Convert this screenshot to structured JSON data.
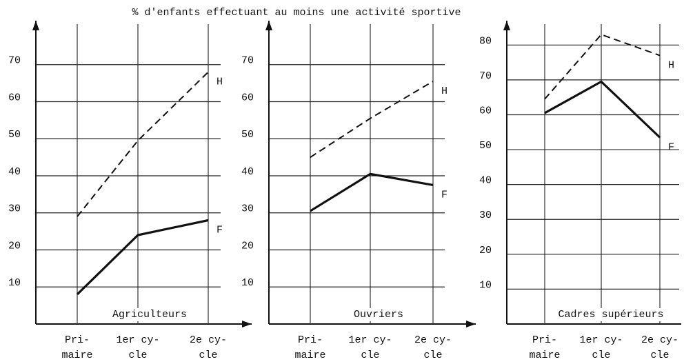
{
  "title": "% d'enfants effectuant au moins une activité sportive",
  "chart_data": [
    {
      "type": "line",
      "label": "Agriculteurs",
      "categories": [
        [
          "Pri-",
          "maire"
        ],
        [
          "1er cy-",
          "cle"
        ],
        [
          "2e cy-",
          "cle"
        ]
      ],
      "series": [
        {
          "name": "H",
          "color": "#111111",
          "style": "dashed",
          "values": [
            29,
            49.5,
            68
          ]
        },
        {
          "name": "F",
          "color": "#111111",
          "style": "solid",
          "values": [
            8,
            24,
            28
          ]
        }
      ],
      "ylim": [
        0,
        80
      ],
      "yticks": [
        10,
        20,
        30,
        40,
        50,
        60,
        70
      ],
      "grid": true
    },
    {
      "type": "line",
      "label": "Ouvriers",
      "categories": [
        [
          "Pri-",
          "maire"
        ],
        [
          "1er cy-",
          "cle"
        ],
        [
          "2e cy-",
          "cle"
        ]
      ],
      "series": [
        {
          "name": "H",
          "color": "#111111",
          "style": "dashed",
          "values": [
            45,
            55.5,
            65.5
          ]
        },
        {
          "name": "F",
          "color": "#111111",
          "style": "solid",
          "values": [
            30.5,
            40.5,
            37.5
          ]
        }
      ],
      "ylim": [
        0,
        80
      ],
      "yticks": [
        10,
        20,
        30,
        40,
        50,
        60,
        70
      ],
      "grid": true
    },
    {
      "type": "line",
      "label": "Cadres supérieurs",
      "categories": [
        [
          "Pri-",
          "maire"
        ],
        [
          "1er cy-",
          "cle"
        ],
        [
          "2e cy-",
          "cle"
        ]
      ],
      "series": [
        {
          "name": "H",
          "color": "#111111",
          "style": "dashed",
          "values": [
            64.5,
            83,
            77
          ]
        },
        {
          "name": "F",
          "color": "#111111",
          "style": "solid",
          "values": [
            60.5,
            69.5,
            53.5
          ]
        }
      ],
      "ylim": [
        0,
        85
      ],
      "yticks": [
        10,
        20,
        30,
        40,
        50,
        60,
        70,
        80
      ],
      "grid": true
    }
  ]
}
